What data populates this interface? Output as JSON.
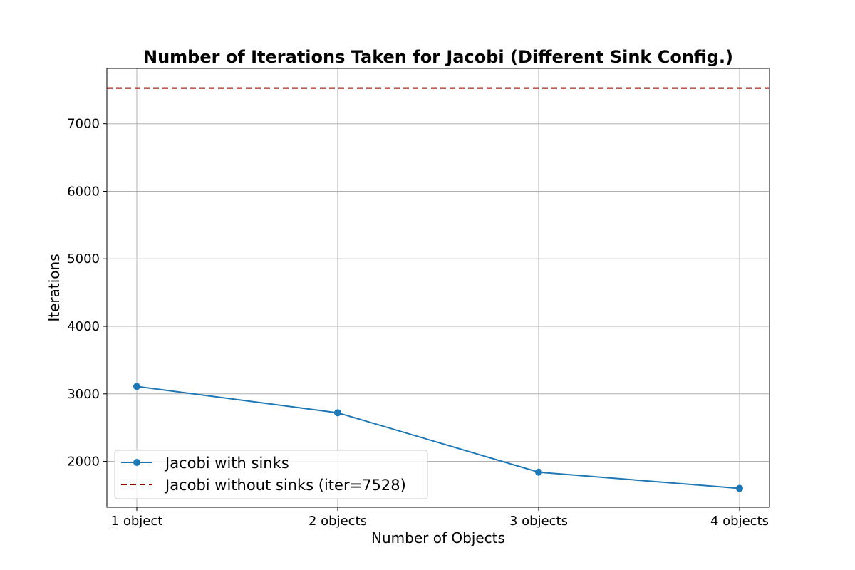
{
  "chart_data": {
    "type": "line",
    "title": "Number of Iterations Taken for Jacobi (Different Sink Config.)",
    "xlabel": "Number of Objects",
    "ylabel": "Iterations",
    "categories": [
      "1 object",
      "2 objects",
      "3 objects",
      "4 objects"
    ],
    "ylim": [
      1320,
      7820
    ],
    "yticks": [
      2000,
      3000,
      4000,
      5000,
      6000,
      7000
    ],
    "grid": true,
    "legend_position": "lower-left",
    "series": [
      {
        "name": "Jacobi with sinks",
        "values": [
          3110,
          2720,
          1840,
          1600
        ],
        "color": "#1f77b4",
        "style": "solid",
        "marker": "circle"
      }
    ],
    "reference_lines": [
      {
        "name": "Jacobi without sinks (iter=7528)",
        "value": 7528,
        "color": "#8b0000",
        "style": "dashed"
      }
    ]
  }
}
